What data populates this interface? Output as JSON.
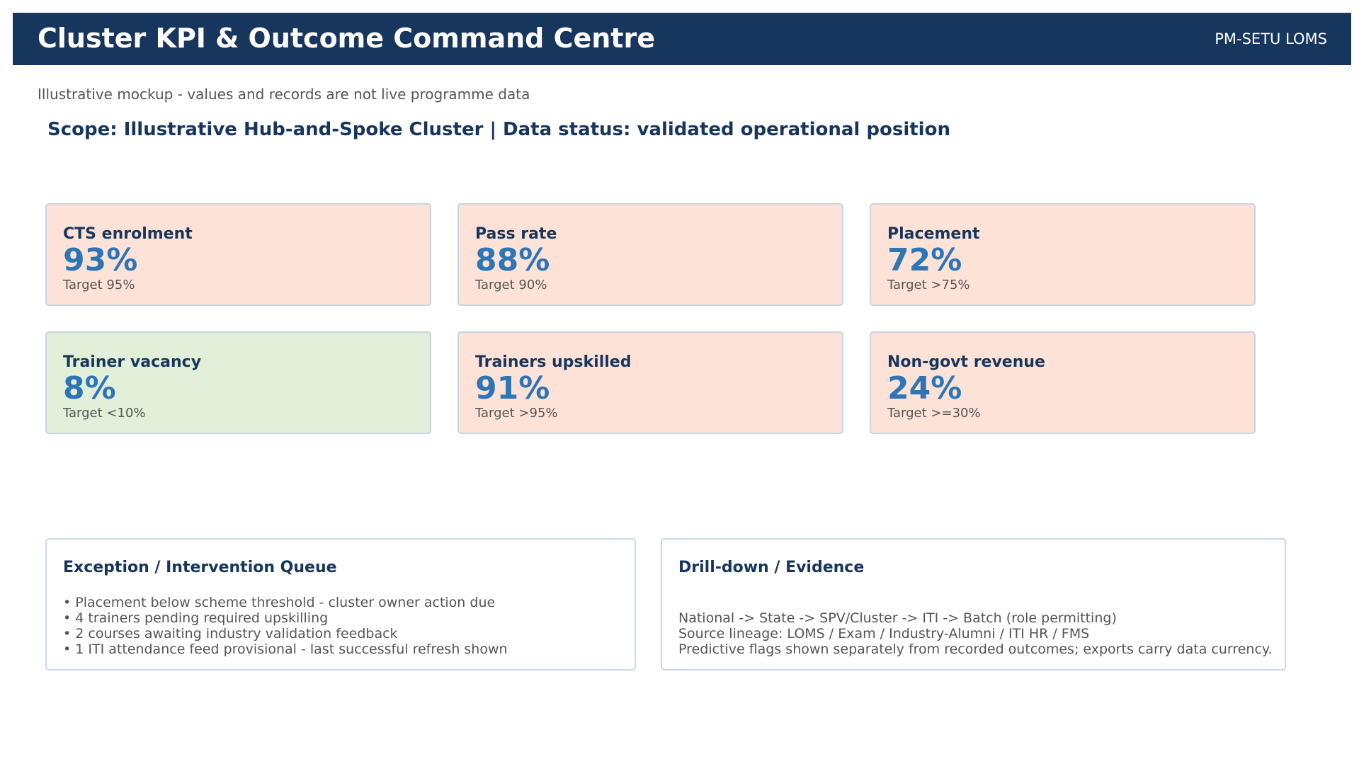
{
  "header": {
    "title": "Cluster KPI & Outcome Command Centre",
    "brand": "PM-SETU LOMS",
    "accent_color": "#17365d"
  },
  "note": "Illustrative mockup - values and records are not live programme data",
  "scope": "Scope: Illustrative Hub-and-Spoke Cluster  |  Data status: validated operational position",
  "kpis": [
    {
      "label": "CTS enrolment",
      "value": "93%",
      "target": "Target 95%",
      "status": "below-target",
      "fill": "#fde3d7"
    },
    {
      "label": "Pass rate",
      "value": "88%",
      "target": "Target 90%",
      "status": "below-target",
      "fill": "#fde3d7"
    },
    {
      "label": "Placement",
      "value": "72%",
      "target": "Target >75%",
      "status": "below-target",
      "fill": "#fde3d7"
    },
    {
      "label": "Trainer vacancy",
      "value": "8%",
      "target": "Target <10%",
      "status": "on-target",
      "fill": "#e2efd9"
    },
    {
      "label": "Trainers upskilled",
      "value": "91%",
      "target": "Target >95%",
      "status": "below-target",
      "fill": "#fde3d7"
    },
    {
      "label": "Non-govt revenue",
      "value": "24%",
      "target": "Target >=30%",
      "status": "below-target",
      "fill": "#fde3d7"
    }
  ],
  "exceptions": {
    "title": "Exception / Intervention Queue",
    "items": [
      "• Placement below scheme threshold - cluster owner action due",
      "• 4 trainers pending required upskilling",
      "• 2 courses awaiting industry validation feedback",
      "• 1 ITI attendance feed provisional - last successful refresh shown"
    ]
  },
  "drilldown": {
    "title": "Drill-down / Evidence",
    "lines": [
      "National -> State -> SPV/Cluster -> ITI -> Batch (role permitting)",
      "Source lineage: LOMS / Exam / Industry-Alumni / ITI HR / FMS",
      "Predictive flags shown separately from recorded outcomes; exports carry data currency."
    ]
  }
}
